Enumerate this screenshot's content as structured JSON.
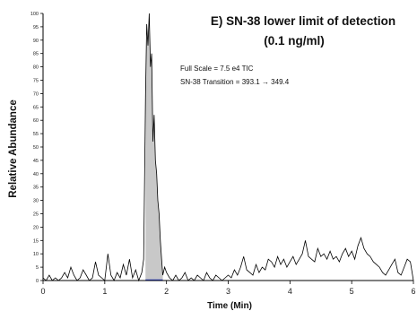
{
  "chart_data": {
    "type": "area",
    "title": "E) SN-38 lower limit of detection",
    "subtitle": "(0.1 ng/ml)",
    "annotations": [
      "Full Scale = 7.5 e4 TIC",
      "SN-38 Transition = 393.1 → 349.4"
    ],
    "xlabel": "Time (Min)",
    "ylabel": "Relative Abundance",
    "xlim": [
      0,
      6
    ],
    "ylim": [
      0,
      100
    ],
    "x_ticks": [
      0,
      1,
      2,
      3,
      4,
      5,
      6
    ],
    "y_ticks": [
      0,
      5,
      10,
      15,
      20,
      25,
      30,
      35,
      40,
      45,
      50,
      55,
      60,
      65,
      70,
      75,
      80,
      85,
      90,
      95,
      100
    ],
    "grid": false,
    "peak": {
      "apex_x": 1.72,
      "apex_y": 100,
      "shaded_range": [
        1.66,
        1.94
      ],
      "fill_color": "#c8c8c8",
      "baseline_color": "#2b3fd6"
    },
    "trace": {
      "color": "#000000",
      "x": [
        0.0,
        0.05,
        0.1,
        0.15,
        0.2,
        0.25,
        0.3,
        0.35,
        0.4,
        0.45,
        0.5,
        0.55,
        0.6,
        0.65,
        0.7,
        0.75,
        0.8,
        0.85,
        0.9,
        0.95,
        1.0,
        1.05,
        1.1,
        1.15,
        1.2,
        1.25,
        1.3,
        1.35,
        1.4,
        1.45,
        1.5,
        1.55,
        1.6,
        1.63,
        1.66,
        1.68,
        1.7,
        1.72,
        1.74,
        1.76,
        1.78,
        1.8,
        1.82,
        1.84,
        1.86,
        1.88,
        1.9,
        1.92,
        1.94,
        1.97,
        2.0,
        2.05,
        2.1,
        2.15,
        2.2,
        2.25,
        2.3,
        2.35,
        2.4,
        2.45,
        2.5,
        2.55,
        2.6,
        2.65,
        2.7,
        2.75,
        2.8,
        2.85,
        2.9,
        2.95,
        3.0,
        3.05,
        3.1,
        3.15,
        3.2,
        3.25,
        3.3,
        3.35,
        3.4,
        3.45,
        3.5,
        3.55,
        3.6,
        3.65,
        3.7,
        3.75,
        3.8,
        3.85,
        3.9,
        3.95,
        4.0,
        4.05,
        4.1,
        4.15,
        4.2,
        4.25,
        4.3,
        4.35,
        4.4,
        4.45,
        4.5,
        4.55,
        4.6,
        4.65,
        4.7,
        4.75,
        4.8,
        4.85,
        4.9,
        4.95,
        5.0,
        5.05,
        5.1,
        5.15,
        5.2,
        5.25,
        5.3,
        5.35,
        5.4,
        5.45,
        5.5,
        5.55,
        5.6,
        5.65,
        5.7,
        5.75,
        5.8,
        5.85,
        5.9,
        5.95,
        6.0
      ],
      "y": [
        1,
        0,
        2,
        0,
        1,
        0,
        1,
        3,
        1,
        5,
        2,
        0,
        1,
        4,
        2,
        0,
        1,
        7,
        2,
        1,
        0,
        10,
        2,
        0,
        3,
        1,
        6,
        2,
        8,
        1,
        4,
        0,
        3,
        8,
        70,
        96,
        88,
        100,
        80,
        85,
        52,
        62,
        45,
        40,
        30,
        25,
        15,
        8,
        2,
        5,
        3,
        1,
        0,
        2,
        0,
        1,
        3,
        0,
        1,
        0,
        2,
        1,
        0,
        3,
        1,
        0,
        2,
        1,
        0,
        1,
        2,
        1,
        4,
        2,
        5,
        9,
        4,
        3,
        2,
        6,
        3,
        5,
        4,
        8,
        7,
        5,
        9,
        6,
        8,
        5,
        7,
        9,
        6,
        8,
        10,
        15,
        9,
        8,
        7,
        12,
        9,
        10,
        8,
        11,
        8,
        9,
        7,
        10,
        12,
        9,
        11,
        8,
        13,
        16,
        12,
        10,
        9,
        7,
        6,
        5,
        3,
        2,
        4,
        6,
        8,
        3,
        2,
        5,
        8,
        7,
        0
      ]
    }
  }
}
